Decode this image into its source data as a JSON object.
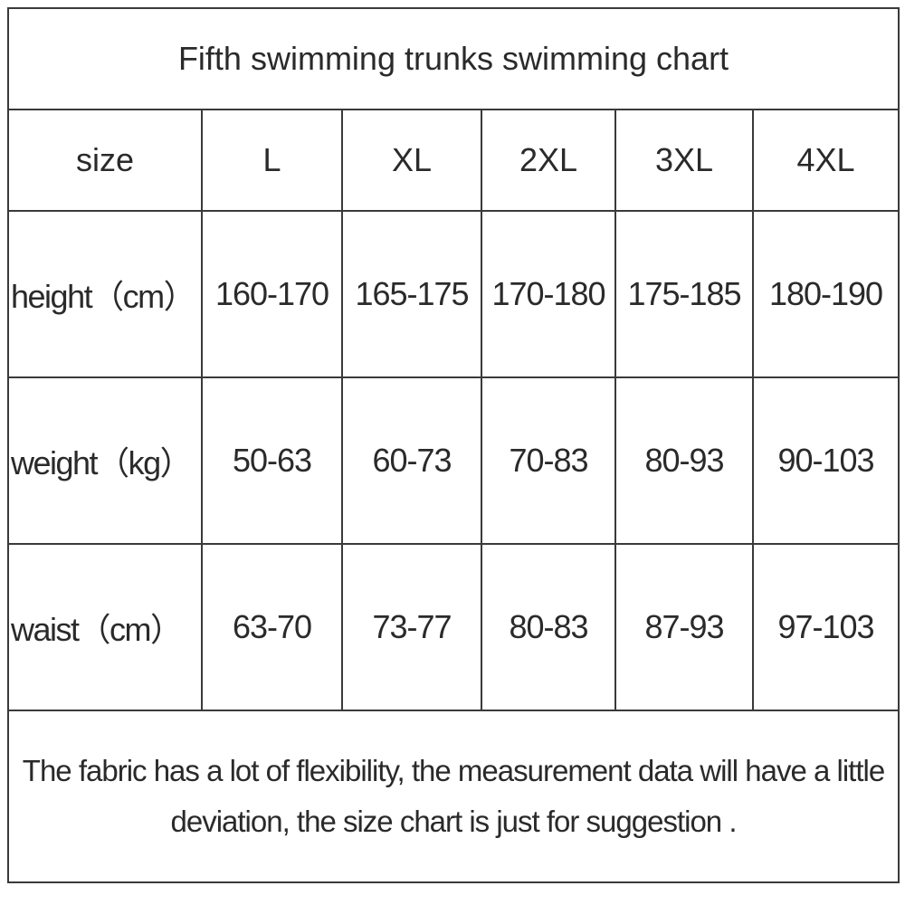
{
  "title": "Fifth swimming trunks swimming chart",
  "table": {
    "header": [
      "size",
      "L",
      "XL",
      "2XL",
      "3XL",
      "4XL"
    ],
    "rows": [
      [
        "height（cm）",
        "160-170",
        "165-175",
        "170-180",
        "175-185",
        "180-190"
      ],
      [
        "weight（kg）",
        "50-63",
        "60-73",
        "70-83",
        "80-93",
        "90-103"
      ],
      [
        "waist（cm）",
        "63-70",
        "73-77",
        "80-83",
        "87-93",
        "97-103"
      ]
    ]
  },
  "note": "The fabric has a lot of flexibility, the measurement data will have a little deviation, the size chart is just for suggestion ."
}
